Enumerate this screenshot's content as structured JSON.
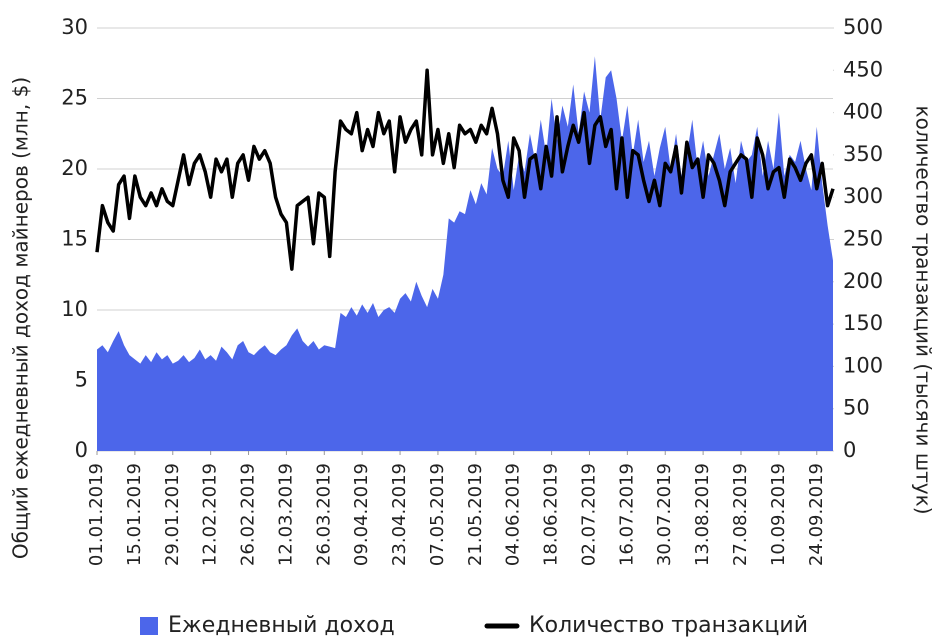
{
  "chart_data": {
    "type": "area_line",
    "x": [
      "01.01.2019",
      "03.01.2019",
      "05.01.2019",
      "07.01.2019",
      "09.01.2019",
      "11.01.2019",
      "13.01.2019",
      "15.01.2019",
      "17.01.2019",
      "19.01.2019",
      "21.01.2019",
      "23.01.2019",
      "25.01.2019",
      "27.01.2019",
      "29.01.2019",
      "31.01.2019",
      "02.02.2019",
      "04.02.2019",
      "06.02.2019",
      "08.02.2019",
      "10.02.2019",
      "12.02.2019",
      "14.02.2019",
      "16.02.2019",
      "18.02.2019",
      "20.02.2019",
      "22.02.2019",
      "24.02.2019",
      "26.02.2019",
      "28.02.2019",
      "02.03.2019",
      "04.03.2019",
      "06.03.2019",
      "08.03.2019",
      "10.03.2019",
      "12.03.2019",
      "14.03.2019",
      "16.03.2019",
      "18.03.2019",
      "20.03.2019",
      "22.03.2019",
      "24.03.2019",
      "26.03.2019",
      "28.03.2019",
      "30.03.2019",
      "01.04.2019",
      "03.04.2019",
      "05.04.2019",
      "07.04.2019",
      "09.04.2019",
      "11.04.2019",
      "13.04.2019",
      "15.04.2019",
      "17.04.2019",
      "19.04.2019",
      "21.04.2019",
      "23.04.2019",
      "25.04.2019",
      "27.04.2019",
      "29.04.2019",
      "01.05.2019",
      "03.05.2019",
      "05.05.2019",
      "07.05.2019",
      "09.05.2019",
      "11.05.2019",
      "13.05.2019",
      "15.05.2019",
      "17.05.2019",
      "19.05.2019",
      "21.05.2019",
      "23.05.2019",
      "25.05.2019",
      "27.05.2019",
      "29.05.2019",
      "31.05.2019",
      "02.06.2019",
      "04.06.2019",
      "06.06.2019",
      "08.06.2019",
      "10.06.2019",
      "12.06.2019",
      "14.06.2019",
      "16.06.2019",
      "18.06.2019",
      "20.06.2019",
      "22.06.2019",
      "24.06.2019",
      "26.06.2019",
      "28.06.2019",
      "30.06.2019",
      "02.07.2019",
      "04.07.2019",
      "06.07.2019",
      "08.07.2019",
      "10.07.2019",
      "12.07.2019",
      "14.07.2019",
      "16.07.2019",
      "18.07.2019",
      "20.07.2019",
      "22.07.2019",
      "24.07.2019",
      "26.07.2019",
      "28.07.2019",
      "30.07.2019",
      "01.08.2019",
      "03.08.2019",
      "05.08.2019",
      "07.08.2019",
      "09.08.2019",
      "11.08.2019",
      "13.08.2019",
      "15.08.2019",
      "17.08.2019",
      "19.08.2019",
      "21.08.2019",
      "23.08.2019",
      "25.08.2019",
      "27.08.2019",
      "29.08.2019",
      "31.08.2019",
      "02.09.2019",
      "04.09.2019",
      "06.09.2019",
      "08.09.2019",
      "10.09.2019",
      "12.09.2019",
      "14.09.2019",
      "16.09.2019",
      "18.09.2019",
      "20.09.2019",
      "22.09.2019",
      "24.09.2019",
      "26.09.2019",
      "28.09.2019",
      "30.09.2019"
    ],
    "xlim": [
      "01.01.2019",
      "30.09.2019"
    ],
    "xticks": [
      "01.01.2019",
      "15.01.2019",
      "29.01.2019",
      "12.02.2019",
      "26.02.2019",
      "12.03.2019",
      "26.03.2019",
      "09.04.2019",
      "23.04.2019",
      "07.05.2019",
      "21.05.2019",
      "04.06.2019",
      "18.06.2019",
      "02.07.2019",
      "16.07.2019",
      "30.07.2019",
      "13.08.2019",
      "27.08.2019",
      "10.09.2019",
      "24.09.2019"
    ],
    "ylabel": "Общий ежедневный доход майнеров (млн, $)",
    "y2label": "количество транзакций (тысячи штук)",
    "ylim": [
      0,
      30
    ],
    "yticks": [
      0,
      5,
      10,
      15,
      20,
      25,
      30
    ],
    "y2lim": [
      0,
      500
    ],
    "y2ticks": [
      0,
      50,
      100,
      150,
      200,
      250,
      300,
      350,
      400,
      450,
      500
    ],
    "grid": true,
    "series": [
      {
        "name": "Ежедневный доход",
        "kind": "area",
        "color": "#4c66ea",
        "values": [
          7.2,
          7.5,
          7.0,
          7.8,
          8.5,
          7.5,
          6.8,
          6.5,
          6.2,
          6.8,
          6.3,
          7.0,
          6.5,
          6.8,
          6.2,
          6.4,
          6.8,
          6.3,
          6.6,
          7.2,
          6.5,
          6.8,
          6.4,
          7.4,
          7.0,
          6.5,
          7.5,
          7.8,
          7.0,
          6.8,
          7.2,
          7.5,
          7.0,
          6.8,
          7.2,
          7.5,
          8.2,
          8.7,
          7.8,
          7.4,
          7.8,
          7.2,
          7.5,
          7.4,
          7.3,
          9.8,
          9.5,
          10.2,
          9.6,
          10.4,
          9.8,
          10.5,
          9.5,
          10.0,
          10.2,
          9.8,
          10.8,
          11.2,
          10.6,
          12.0,
          11.0,
          10.2,
          11.5,
          10.8,
          12.5,
          16.5,
          16.2,
          17.0,
          16.8,
          18.5,
          17.5,
          19.0,
          18.2,
          21.5,
          20.0,
          19.5,
          22.0,
          18.5,
          21.0,
          19.8,
          22.5,
          20.5,
          23.5,
          21.0,
          25.0,
          22.0,
          24.5,
          23.0,
          26.0,
          22.5,
          25.5,
          24.0,
          28.0,
          23.5,
          26.5,
          27.0,
          25.0,
          22.0,
          24.5,
          21.0,
          23.5,
          20.5,
          22.0,
          19.5,
          21.5,
          23.0,
          20.0,
          22.5,
          19.5,
          21.0,
          23.5,
          20.0,
          22.0,
          19.5,
          21.0,
          22.5,
          20.0,
          21.5,
          19.0,
          22.0,
          20.5,
          21.0,
          23.0,
          19.5,
          22.0,
          20.0,
          24.0,
          19.5,
          21.0,
          20.5,
          22.0,
          20.0,
          18.5,
          23.0,
          19.0,
          16.0,
          13.5
        ]
      },
      {
        "name": "Количество транзакций",
        "kind": "line",
        "axis": "y2",
        "color": "#000000",
        "values": [
          235,
          290,
          270,
          260,
          315,
          325,
          275,
          325,
          300,
          290,
          305,
          290,
          310,
          295,
          290,
          320,
          350,
          315,
          340,
          350,
          330,
          300,
          345,
          330,
          345,
          300,
          340,
          350,
          320,
          360,
          345,
          355,
          340,
          300,
          280,
          270,
          215,
          290,
          295,
          300,
          245,
          305,
          300,
          230,
          330,
          390,
          380,
          375,
          400,
          355,
          380,
          360,
          400,
          375,
          390,
          330,
          395,
          365,
          380,
          390,
          350,
          450,
          350,
          380,
          340,
          375,
          335,
          385,
          375,
          380,
          365,
          385,
          375,
          405,
          375,
          320,
          300,
          370,
          355,
          300,
          345,
          350,
          310,
          360,
          325,
          395,
          330,
          360,
          385,
          365,
          400,
          340,
          385,
          395,
          360,
          380,
          310,
          370,
          300,
          355,
          350,
          320,
          295,
          320,
          290,
          340,
          330,
          360,
          305,
          365,
          335,
          345,
          300,
          350,
          340,
          320,
          290,
          330,
          340,
          350,
          345,
          300,
          370,
          350,
          310,
          330,
          335,
          300,
          345,
          335,
          320,
          340,
          350,
          310,
          340,
          290,
          310
        ]
      }
    ]
  }
}
